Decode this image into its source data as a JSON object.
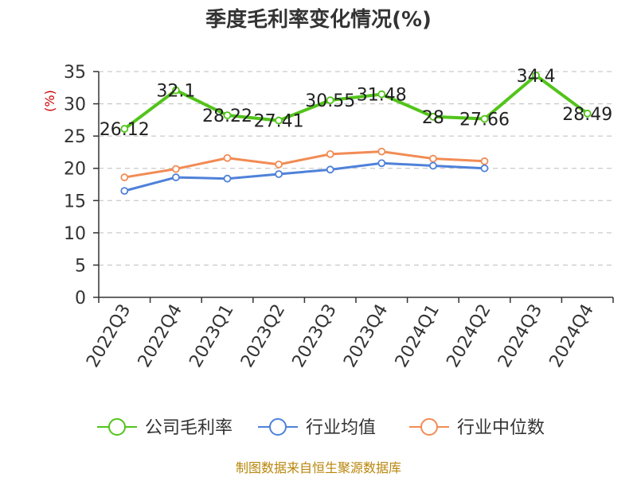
{
  "chart_data": {
    "type": "line",
    "title": "季度毛利率变化情况(%)",
    "ylabel": "(%)",
    "xlabel": "",
    "categories": [
      "2022Q3",
      "2022Q4",
      "2023Q1",
      "2023Q2",
      "2023Q3",
      "2023Q4",
      "2024Q1",
      "2024Q2",
      "2024Q3",
      "2024Q4"
    ],
    "yticks": [
      0,
      5,
      10,
      15,
      20,
      25,
      30,
      35
    ],
    "ylim": [
      0,
      35
    ],
    "grid": true,
    "legend_position": "bottom",
    "series": [
      {
        "name": "公司毛利率",
        "color": "#52c41a",
        "values": [
          26.12,
          32.1,
          28.22,
          27.41,
          30.55,
          31.48,
          28,
          27.66,
          34.4,
          28.49
        ],
        "labels": [
          "26.12",
          "32.1",
          "28.22",
          "27.41",
          "30.55",
          "31.48",
          "28",
          "27.66",
          "34.4",
          "28.49"
        ]
      },
      {
        "name": "行业均值",
        "color": "#4f81d9",
        "values": [
          16.5,
          18.6,
          18.4,
          19.1,
          19.8,
          20.8,
          20.4,
          20.0,
          null,
          null
        ]
      },
      {
        "name": "行业中位数",
        "color": "#f28b54",
        "values": [
          18.6,
          19.9,
          21.6,
          20.6,
          22.2,
          22.6,
          21.5,
          21.1,
          null,
          null
        ]
      }
    ],
    "source": "制图数据来自恒生聚源数据库"
  }
}
